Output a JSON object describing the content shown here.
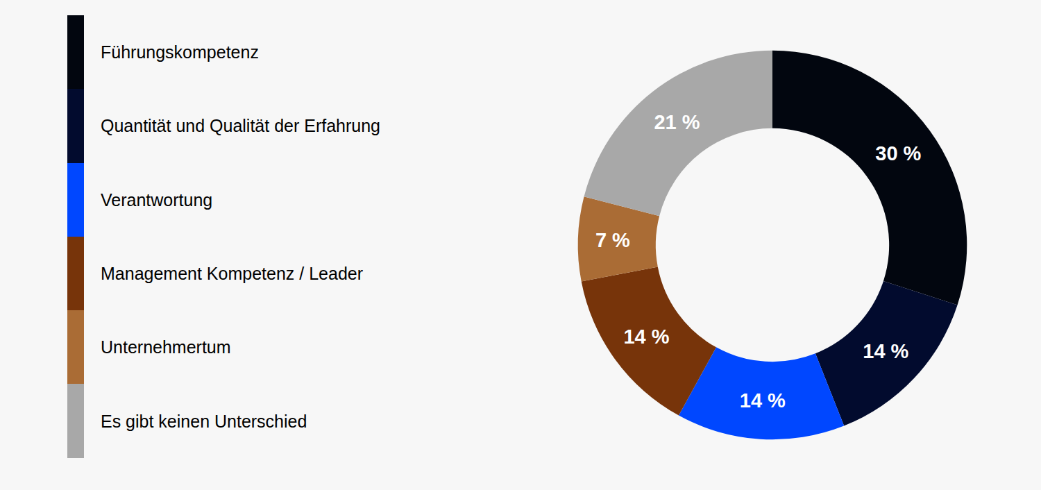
{
  "chart_data": {
    "type": "pie",
    "categories": [
      "Führungskompetenz",
      "Quantität und Qualität der Erfahrung",
      "Verantwortung",
      "Management Kompetenz / Leader",
      "Unternehmertum",
      "Es gibt keinen Unterschied"
    ],
    "values": [
      30,
      14,
      14,
      14,
      7,
      21
    ],
    "value_labels": [
      "30 %",
      "14 %",
      "14 %",
      "14 %",
      "7 %",
      "21 %"
    ],
    "colors": [
      "#02060f",
      "#020b2e",
      "#0047ff",
      "#77340a",
      "#aa6c35",
      "#a8a8a8"
    ],
    "data_labels": true,
    "legend": "left"
  }
}
